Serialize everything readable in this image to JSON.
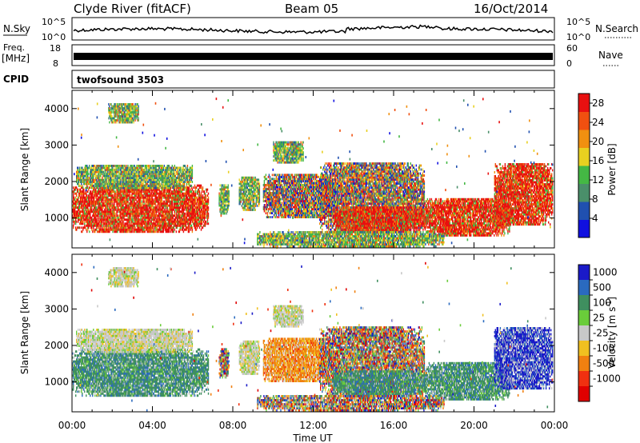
{
  "header": {
    "title": "Clyde River (fitACF)",
    "beam": "Beam 05",
    "date": "16/Oct/2014"
  },
  "top_panels": {
    "nsky": {
      "label": "N.Sky",
      "left_ticks": [
        "10^5",
        "10^0"
      ],
      "right_ticks": [
        "10^5",
        "10^0"
      ],
      "right_label": "N.Search"
    },
    "freq": {
      "label_top": "Freq.",
      "label_unit": "[MHz]",
      "left_ticks": [
        "18",
        "8"
      ],
      "right_ticks": [
        "60",
        "0"
      ],
      "right_label": "Nave"
    },
    "cpid": {
      "label": "CPID",
      "value": "twofsound 3503"
    }
  },
  "axes": {
    "x_ticks": [
      "00:00",
      "04:00",
      "08:00",
      "12:00",
      "16:00",
      "20:00",
      "00:00"
    ],
    "x_label": "Time UT",
    "y_ticks": [
      "1000",
      "2000",
      "3000",
      "4000"
    ],
    "y_label": "Slant Range [km]"
  },
  "chart_data": [
    {
      "type": "heatmap",
      "name": "power",
      "x_range_hours": [
        0,
        24
      ],
      "y_range_km": [
        180,
        4500
      ],
      "colorbar": {
        "label": "Power [dB]",
        "ticks": [
          "4",
          "8",
          "12",
          "16",
          "20",
          "24",
          "28"
        ],
        "range": [
          0,
          30
        ],
        "colors": [
          "#1010e0",
          "#2050b0",
          "#4a8f6a",
          "#44b844",
          "#e8d020",
          "#f09010",
          "#f05010",
          "#e81010"
        ]
      }
    },
    {
      "type": "heatmap",
      "name": "velocity",
      "x_range_hours": [
        0,
        24
      ],
      "y_range_km": [
        180,
        4500
      ],
      "colorbar": {
        "label": "Velocity [m s",
        "label_sup": "-1",
        "label_end": "]",
        "ticks": [
          "1000",
          "500",
          "100",
          "25",
          "-25",
          "-100",
          "-500",
          "-1000"
        ],
        "colors": [
          "#1a1ac8",
          "#2a6abf",
          "#3f8f5f",
          "#6acc3a",
          "#c8c8c8",
          "#f0c020",
          "#f08010",
          "#f03010",
          "#e00000"
        ]
      }
    }
  ]
}
